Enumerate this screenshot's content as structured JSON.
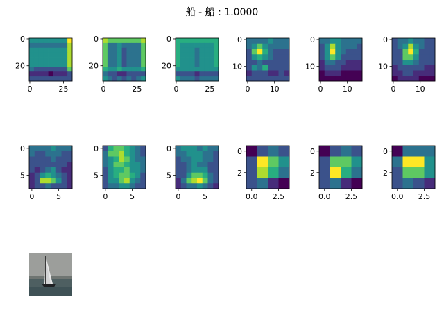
{
  "figure": {
    "title": "船 - 船 : 1.0000"
  },
  "colormap": [
    "#440154",
    "#472c7a",
    "#3b528b",
    "#2c728e",
    "#21918c",
    "#28ae80",
    "#5ec962",
    "#addc30",
    "#fde725"
  ],
  "chart_data": [
    {
      "type": "heatmap",
      "name": "fm-row1-1",
      "size": 32,
      "xticks": [
        "0",
        "25"
      ],
      "yticks": [
        "0",
        "20"
      ],
      "cells": [
        [
          0.5,
          0.5,
          0.5,
          0.5,
          0.5,
          0.5,
          0.5,
          0.5,
          0.95
        ],
        [
          0.4,
          0.4,
          0.4,
          0.4,
          0.4,
          0.4,
          0.4,
          0.4,
          0.9
        ],
        [
          0.45,
          0.45,
          0.45,
          0.45,
          0.45,
          0.45,
          0.45,
          0.45,
          0.9
        ],
        [
          0.45,
          0.45,
          0.45,
          0.45,
          0.45,
          0.45,
          0.45,
          0.45,
          0.9
        ],
        [
          0.45,
          0.45,
          0.45,
          0.45,
          0.45,
          0.45,
          0.45,
          0.45,
          0.9
        ],
        [
          0.45,
          0.45,
          0.45,
          0.45,
          0.45,
          0.45,
          0.45,
          0.45,
          0.85
        ],
        [
          0.35,
          0.3,
          0.3,
          0.3,
          0.25,
          0.3,
          0.3,
          0.3,
          0.8
        ],
        [
          0.15,
          0.1,
          0.1,
          0.15,
          0.05,
          0.1,
          0.1,
          0.1,
          0.3
        ],
        [
          0.2,
          0.2,
          0.2,
          0.2,
          0.2,
          0.2,
          0.2,
          0.2,
          0.2
        ]
      ]
    },
    {
      "type": "heatmap",
      "name": "fm-row1-2",
      "size": 32,
      "xticks": [
        "0",
        "25"
      ],
      "yticks": [
        "0",
        "20"
      ],
      "cells": [
        [
          0.85,
          0.8,
          0.8,
          0.8,
          0.8,
          0.8,
          0.8,
          0.8,
          0.85
        ],
        [
          0.75,
          0.4,
          0.4,
          0.45,
          0.35,
          0.4,
          0.4,
          0.4,
          0.75
        ],
        [
          0.75,
          0.35,
          0.4,
          0.45,
          0.3,
          0.35,
          0.35,
          0.35,
          0.75
        ],
        [
          0.75,
          0.35,
          0.35,
          0.45,
          0.3,
          0.35,
          0.35,
          0.35,
          0.75
        ],
        [
          0.75,
          0.35,
          0.35,
          0.5,
          0.3,
          0.35,
          0.35,
          0.35,
          0.75
        ],
        [
          0.7,
          0.35,
          0.35,
          0.55,
          0.3,
          0.35,
          0.35,
          0.35,
          0.7
        ],
        [
          0.6,
          0.55,
          0.55,
          0.6,
          0.5,
          0.55,
          0.55,
          0.55,
          0.65
        ],
        [
          0.35,
          0.2,
          0.25,
          0.15,
          0.1,
          0.2,
          0.25,
          0.2,
          0.3
        ],
        [
          0.5,
          0.35,
          0.3,
          0.35,
          0.3,
          0.35,
          0.3,
          0.35,
          0.45
        ]
      ]
    },
    {
      "type": "heatmap",
      "name": "fm-row1-3",
      "size": 32,
      "xticks": [
        "0",
        "25"
      ],
      "yticks": [
        "0",
        "20"
      ],
      "cells": [
        [
          0.6,
          0.6,
          0.6,
          0.6,
          0.6,
          0.6,
          0.6,
          0.6,
          0.6
        ],
        [
          0.65,
          0.5,
          0.5,
          0.5,
          0.45,
          0.5,
          0.5,
          0.5,
          0.65
        ],
        [
          0.65,
          0.45,
          0.45,
          0.5,
          0.4,
          0.45,
          0.45,
          0.45,
          0.65
        ],
        [
          0.65,
          0.45,
          0.45,
          0.5,
          0.4,
          0.45,
          0.45,
          0.45,
          0.65
        ],
        [
          0.65,
          0.45,
          0.45,
          0.5,
          0.4,
          0.45,
          0.45,
          0.45,
          0.65
        ],
        [
          0.6,
          0.45,
          0.45,
          0.55,
          0.4,
          0.45,
          0.45,
          0.45,
          0.6
        ],
        [
          0.55,
          0.5,
          0.5,
          0.55,
          0.45,
          0.5,
          0.5,
          0.5,
          0.55
        ],
        [
          0.3,
          0.25,
          0.25,
          0.2,
          0.15,
          0.25,
          0.25,
          0.25,
          0.3
        ],
        [
          0.45,
          0.35,
          0.35,
          0.35,
          0.3,
          0.35,
          0.35,
          0.35,
          0.4
        ]
      ]
    },
    {
      "type": "heatmap",
      "name": "fm-row1-4",
      "size": 16,
      "xticks": [
        "0",
        "10"
      ],
      "yticks": [
        "0",
        "10"
      ],
      "cells": [
        [
          0.35,
          0.35,
          0.35,
          0.4,
          0.45,
          0.4,
          0.35,
          0.35
        ],
        [
          0.35,
          0.45,
          0.75,
          0.55,
          0.4,
          0.35,
          0.35,
          0.35
        ],
        [
          0.3,
          0.7,
          0.95,
          0.6,
          0.35,
          0.3,
          0.3,
          0.3
        ],
        [
          0.3,
          0.45,
          0.65,
          0.45,
          0.4,
          0.3,
          0.3,
          0.3
        ],
        [
          0.25,
          0.3,
          0.4,
          0.3,
          0.3,
          0.25,
          0.25,
          0.25
        ],
        [
          0.25,
          0.5,
          0.35,
          0.65,
          0.2,
          0.25,
          0.25,
          0.25
        ],
        [
          0.15,
          0.25,
          0.3,
          0.2,
          0.15,
          0.15,
          0.2,
          0.15
        ],
        [
          0.2,
          0.2,
          0.2,
          0.2,
          0.2,
          0.2,
          0.2,
          0.2
        ]
      ]
    },
    {
      "type": "heatmap",
      "name": "fm-row1-5",
      "size": 16,
      "xticks": [
        "0",
        "10"
      ],
      "yticks": [
        "0",
        "10"
      ],
      "cells": [
        [
          0.35,
          0.4,
          0.45,
          0.45,
          0.4,
          0.4,
          0.4,
          0.35
        ],
        [
          0.3,
          0.45,
          0.85,
          0.5,
          0.35,
          0.35,
          0.35,
          0.3
        ],
        [
          0.25,
          0.55,
          1.0,
          0.55,
          0.35,
          0.3,
          0.3,
          0.25
        ],
        [
          0.2,
          0.45,
          0.75,
          0.45,
          0.3,
          0.25,
          0.25,
          0.2
        ],
        [
          0.15,
          0.35,
          0.4,
          0.3,
          0.2,
          0.15,
          0.15,
          0.15
        ],
        [
          0.1,
          0.2,
          0.25,
          0.2,
          0.15,
          0.1,
          0.1,
          0.1
        ],
        [
          0.05,
          0.1,
          0.15,
          0.1,
          0.05,
          0.05,
          0.05,
          0.05
        ],
        [
          0.0,
          0.05,
          0.05,
          0.05,
          0.0,
          0.0,
          0.0,
          0.0
        ]
      ]
    },
    {
      "type": "heatmap",
      "name": "fm-row1-6",
      "size": 16,
      "xticks": [
        "0",
        "10"
      ],
      "yticks": [
        "0",
        "10"
      ],
      "cells": [
        [
          0.3,
          0.35,
          0.4,
          0.45,
          0.4,
          0.35,
          0.3,
          0.3
        ],
        [
          0.3,
          0.35,
          0.45,
          0.85,
          0.55,
          0.35,
          0.3,
          0.3
        ],
        [
          0.25,
          0.3,
          0.7,
          0.95,
          0.6,
          0.3,
          0.3,
          0.25
        ],
        [
          0.2,
          0.3,
          0.8,
          0.75,
          0.5,
          0.3,
          0.25,
          0.2
        ],
        [
          0.2,
          0.25,
          0.55,
          0.5,
          0.4,
          0.25,
          0.2,
          0.2
        ],
        [
          0.15,
          0.2,
          0.3,
          0.3,
          0.25,
          0.2,
          0.15,
          0.15
        ],
        [
          0.1,
          0.15,
          0.2,
          0.2,
          0.15,
          0.1,
          0.1,
          0.1
        ],
        [
          0.05,
          0.1,
          0.1,
          0.1,
          0.1,
          0.05,
          0.05,
          0.05
        ]
      ]
    },
    {
      "type": "heatmap",
      "name": "fm-row2-1",
      "size": 8,
      "xticks": [
        "0",
        "5"
      ],
      "yticks": [
        "0",
        "5"
      ],
      "cells": [
        [
          0.4,
          0.4,
          0.35,
          0.4,
          0.45,
          0.4,
          0.4,
          0.35
        ],
        [
          0.35,
          0.3,
          0.3,
          0.35,
          0.4,
          0.35,
          0.3,
          0.3
        ],
        [
          0.3,
          0.25,
          0.3,
          0.3,
          0.35,
          0.3,
          0.25,
          0.3
        ],
        [
          0.25,
          0.2,
          0.25,
          0.3,
          0.3,
          0.25,
          0.2,
          0.15
        ],
        [
          0.2,
          0.15,
          0.3,
          0.4,
          0.45,
          0.3,
          0.15,
          0.15
        ],
        [
          0.15,
          0.2,
          0.45,
          0.65,
          0.55,
          0.35,
          0.2,
          0.15
        ],
        [
          0.1,
          0.3,
          0.85,
          0.9,
          0.7,
          0.45,
          0.25,
          0.1
        ],
        [
          0.15,
          0.2,
          0.3,
          0.35,
          0.3,
          0.25,
          0.2,
          0.1
        ]
      ]
    },
    {
      "type": "heatmap",
      "name": "fm-row2-2",
      "size": 8,
      "xticks": [
        "0",
        "5"
      ],
      "yticks": [
        "0",
        "5"
      ],
      "cells": [
        [
          0.3,
          0.65,
          0.7,
          0.75,
          0.6,
          0.45,
          0.35,
          0.3
        ],
        [
          0.35,
          0.7,
          0.75,
          0.9,
          0.65,
          0.45,
          0.35,
          0.3
        ],
        [
          0.4,
          0.55,
          0.6,
          0.85,
          0.7,
          0.5,
          0.4,
          0.35
        ],
        [
          0.35,
          0.5,
          0.7,
          0.75,
          0.6,
          0.5,
          0.45,
          0.4
        ],
        [
          0.3,
          0.55,
          0.65,
          0.6,
          0.7,
          0.55,
          0.45,
          0.35
        ],
        [
          0.25,
          0.5,
          0.6,
          0.7,
          0.75,
          0.6,
          0.45,
          0.3
        ],
        [
          0.25,
          0.45,
          0.55,
          0.8,
          0.85,
          0.55,
          0.4,
          0.3
        ],
        [
          0.2,
          0.35,
          0.4,
          0.5,
          0.45,
          0.35,
          0.3,
          0.25
        ]
      ]
    },
    {
      "type": "heatmap",
      "name": "fm-row2-3",
      "size": 8,
      "xticks": [
        "0",
        "5"
      ],
      "yticks": [
        "0",
        "5"
      ],
      "cells": [
        [
          0.4,
          0.45,
          0.5,
          0.45,
          0.4,
          0.45,
          0.4,
          0.35
        ],
        [
          0.35,
          0.4,
          0.45,
          0.5,
          0.45,
          0.4,
          0.35,
          0.3
        ],
        [
          0.3,
          0.35,
          0.4,
          0.45,
          0.5,
          0.4,
          0.35,
          0.3
        ],
        [
          0.25,
          0.3,
          0.35,
          0.45,
          0.4,
          0.35,
          0.3,
          0.25
        ],
        [
          0.2,
          0.25,
          0.35,
          0.45,
          0.55,
          0.45,
          0.3,
          0.2
        ],
        [
          0.2,
          0.3,
          0.5,
          0.7,
          0.75,
          0.6,
          0.35,
          0.2
        ],
        [
          0.15,
          0.35,
          0.7,
          0.85,
          0.95,
          0.75,
          0.4,
          0.2
        ],
        [
          0.15,
          0.25,
          0.35,
          0.4,
          0.45,
          0.35,
          0.25,
          0.15
        ]
      ]
    },
    {
      "type": "heatmap",
      "name": "fm-row2-4",
      "size": 4,
      "xticks": [
        "0.0",
        "2.5"
      ],
      "yticks": [
        "0",
        "2"
      ],
      "cells": [
        [
          0.0,
          0.3,
          0.35,
          0.3
        ],
        [
          0.3,
          0.95,
          0.7,
          0.45
        ],
        [
          0.25,
          0.9,
          0.6,
          0.4
        ],
        [
          0.2,
          0.35,
          0.1,
          0.0
        ]
      ]
    },
    {
      "type": "heatmap",
      "name": "fm-row2-5",
      "size": 4,
      "xticks": [
        "0.0",
        "2.5"
      ],
      "yticks": [
        "0",
        "2"
      ],
      "cells": [
        [
          0.0,
          0.3,
          0.35,
          0.3
        ],
        [
          0.3,
          0.75,
          0.75,
          0.45
        ],
        [
          0.3,
          0.95,
          0.65,
          0.4
        ],
        [
          0.2,
          0.35,
          0.15,
          0.0
        ]
      ]
    },
    {
      "type": "heatmap",
      "name": "fm-row2-6",
      "size": 4,
      "xticks": [
        "0.0",
        "2.5"
      ],
      "yticks": [
        "0",
        "2"
      ],
      "cells": [
        [
          0.0,
          0.35,
          0.4,
          0.35
        ],
        [
          0.35,
          0.95,
          0.95,
          0.5
        ],
        [
          0.3,
          0.75,
          0.8,
          0.45
        ],
        [
          0.2,
          0.4,
          0.3,
          0.1
        ]
      ]
    }
  ],
  "input_image": {
    "type": "photo-thumbnail",
    "name": "sailboat-input-image"
  }
}
